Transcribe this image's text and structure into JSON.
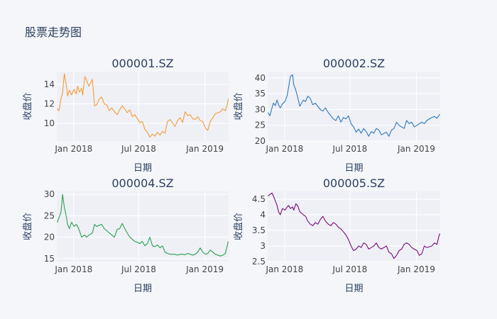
{
  "title": "股票走势图",
  "colors": {
    "background": "#f5f6fa",
    "plot_background": "#eef0f6",
    "grid": "#ffffff",
    "text": "#2a3f5f"
  },
  "chart_data": [
    {
      "type": "line",
      "title": "000001.SZ",
      "xlabel": "日期",
      "ylabel": "收盘价",
      "color": "#f59b38",
      "x_range": [
        "2017-11-15",
        "2019-03-08"
      ],
      "ylim": [
        8.2,
        15.3
      ],
      "x_ticks": [
        {
          "date": "2018-01-01",
          "label": "Jan 2018"
        },
        {
          "date": "2018-07-01",
          "label": "Jul 2018"
        },
        {
          "date": "2019-01-01",
          "label": "Jan 2019"
        }
      ],
      "y_ticks": [
        10,
        12,
        14
      ],
      "x": [
        "2017-11-16",
        "2017-11-21",
        "2017-11-27",
        "2017-12-01",
        "2017-12-06",
        "2017-12-11",
        "2017-12-15",
        "2017-12-20",
        "2017-12-26",
        "2018-01-02",
        "2018-01-08",
        "2018-01-12",
        "2018-01-17",
        "2018-01-23",
        "2018-01-26",
        "2018-02-01",
        "2018-02-06",
        "2018-02-12",
        "2018-02-22",
        "2018-02-28",
        "2018-03-06",
        "2018-03-13",
        "2018-03-20",
        "2018-03-27",
        "2018-04-03",
        "2018-04-10",
        "2018-04-17",
        "2018-04-24",
        "2018-05-02",
        "2018-05-09",
        "2018-05-16",
        "2018-05-23",
        "2018-05-30",
        "2018-06-06",
        "2018-06-13",
        "2018-06-20",
        "2018-06-27",
        "2018-07-04",
        "2018-07-11",
        "2018-07-18",
        "2018-07-25",
        "2018-08-01",
        "2018-08-08",
        "2018-08-15",
        "2018-08-22",
        "2018-08-29",
        "2018-09-05",
        "2018-09-12",
        "2018-09-19",
        "2018-09-26",
        "2018-10-10",
        "2018-10-17",
        "2018-10-24",
        "2018-10-31",
        "2018-11-07",
        "2018-11-14",
        "2018-11-21",
        "2018-11-28",
        "2018-12-05",
        "2018-12-12",
        "2018-12-19",
        "2018-12-26",
        "2019-01-03",
        "2019-01-09",
        "2019-01-16",
        "2019-01-23",
        "2019-01-30",
        "2019-02-13",
        "2019-02-20",
        "2019-02-27",
        "2019-03-04",
        "2019-03-07"
      ],
      "values": [
        11.5,
        11.3,
        12.6,
        13.1,
        15.1,
        14.0,
        12.8,
        13.4,
        12.9,
        13.5,
        13.0,
        13.8,
        13.2,
        13.6,
        12.9,
        14.8,
        14.4,
        13.8,
        14.5,
        11.8,
        11.9,
        12.5,
        12.7,
        12.0,
        11.9,
        11.3,
        11.6,
        11.2,
        10.9,
        11.4,
        11.8,
        11.5,
        11.1,
        11.4,
        10.7,
        10.9,
        10.5,
        10.1,
        10.2,
        9.4,
        9.1,
        8.6,
        8.9,
        8.7,
        9.1,
        8.8,
        9.2,
        9.0,
        10.2,
        10.4,
        9.7,
        10.3,
        10.6,
        10.1,
        11.2,
        10.8,
        10.9,
        10.5,
        10.4,
        10.7,
        10.3,
        10.2,
        9.5,
        9.3,
        10.2,
        10.6,
        11.0,
        11.2,
        11.5,
        11.3,
        11.9,
        12.5
      ]
    },
    {
      "type": "line",
      "title": "000002.SZ",
      "xlabel": "日期",
      "ylabel": "收盘价",
      "color": "#2e78ba",
      "x_range": [
        "2017-11-15",
        "2019-03-08"
      ],
      "ylim": [
        20,
        42
      ],
      "x_ticks": [
        {
          "date": "2018-01-01",
          "label": "Jan 2018"
        },
        {
          "date": "2018-07-01",
          "label": "Jul 2018"
        },
        {
          "date": "2019-01-01",
          "label": "Jan 2019"
        }
      ],
      "y_ticks": [
        20,
        25,
        30,
        35,
        40
      ],
      "x": [
        "2017-11-16",
        "2017-11-21",
        "2017-11-27",
        "2017-12-01",
        "2017-12-06",
        "2017-12-11",
        "2017-12-15",
        "2017-12-20",
        "2017-12-26",
        "2018-01-02",
        "2018-01-08",
        "2018-01-12",
        "2018-01-17",
        "2018-01-23",
        "2018-01-26",
        "2018-02-01",
        "2018-02-06",
        "2018-02-12",
        "2018-02-22",
        "2018-02-28",
        "2018-03-06",
        "2018-03-13",
        "2018-03-20",
        "2018-03-27",
        "2018-04-03",
        "2018-04-10",
        "2018-04-17",
        "2018-04-24",
        "2018-05-02",
        "2018-05-09",
        "2018-05-16",
        "2018-05-23",
        "2018-05-30",
        "2018-06-06",
        "2018-06-13",
        "2018-06-20",
        "2018-06-27",
        "2018-07-04",
        "2018-07-11",
        "2018-07-18",
        "2018-07-25",
        "2018-08-01",
        "2018-08-08",
        "2018-08-15",
        "2018-08-22",
        "2018-08-29",
        "2018-09-05",
        "2018-09-12",
        "2018-09-19",
        "2018-09-26",
        "2018-10-10",
        "2018-10-17",
        "2018-10-24",
        "2018-10-31",
        "2018-11-07",
        "2018-11-14",
        "2018-11-21",
        "2018-11-28",
        "2018-12-05",
        "2018-12-12",
        "2018-12-19",
        "2018-12-26",
        "2019-01-03",
        "2019-01-09",
        "2019-01-16",
        "2019-01-23",
        "2019-01-30",
        "2019-02-13",
        "2019-02-20",
        "2019-02-27",
        "2019-03-04",
        "2019-03-07"
      ],
      "values": [
        29.0,
        28.0,
        30.5,
        32.0,
        31.2,
        33.0,
        31.5,
        30.5,
        31.8,
        32.5,
        34.5,
        37.0,
        40.5,
        41.0,
        38.0,
        36.0,
        34.0,
        31.0,
        33.0,
        32.5,
        34.2,
        33.5,
        31.5,
        32.0,
        31.0,
        30.0,
        29.5,
        30.5,
        29.0,
        28.0,
        27.0,
        26.5,
        28.0,
        26.0,
        27.5,
        27.0,
        28.0,
        25.5,
        24.5,
        22.8,
        23.8,
        22.5,
        24.0,
        23.0,
        21.5,
        23.0,
        22.5,
        24.0,
        23.5,
        22.0,
        22.8,
        21.5,
        23.5,
        24.0,
        26.0,
        25.0,
        24.5,
        24.0,
        26.5,
        25.5,
        26.0,
        24.5,
        25.0,
        25.5,
        26.0,
        25.5,
        26.5,
        27.5,
        27.8,
        27.2,
        28.0,
        28.5
      ]
    },
    {
      "type": "line",
      "title": "000004.SZ",
      "xlabel": "日期",
      "ylabel": "收盘价",
      "color": "#2aa050",
      "x_range": [
        "2017-11-15",
        "2019-03-08"
      ],
      "ylim": [
        14.3,
        30.7
      ],
      "x_ticks": [
        {
          "date": "2018-01-01",
          "label": "Jan 2018"
        },
        {
          "date": "2018-07-01",
          "label": "Jul 2018"
        },
        {
          "date": "2019-01-01",
          "label": "Jan 2019"
        }
      ],
      "y_ticks": [
        15,
        20,
        25,
        30
      ],
      "x": [
        "2017-11-16",
        "2017-11-21",
        "2017-11-27",
        "2017-12-01",
        "2017-12-06",
        "2017-12-11",
        "2017-12-15",
        "2017-12-20",
        "2017-12-26",
        "2018-01-02",
        "2018-01-08",
        "2018-01-12",
        "2018-01-17",
        "2018-01-23",
        "2018-01-26",
        "2018-02-01",
        "2018-02-06",
        "2018-02-12",
        "2018-02-22",
        "2018-02-28",
        "2018-03-06",
        "2018-03-13",
        "2018-03-20",
        "2018-03-27",
        "2018-04-03",
        "2018-04-10",
        "2018-04-17",
        "2018-04-24",
        "2018-05-02",
        "2018-05-09",
        "2018-05-16",
        "2018-05-23",
        "2018-05-30",
        "2018-06-06",
        "2018-06-13",
        "2018-06-20",
        "2018-06-27",
        "2018-07-04",
        "2018-07-11",
        "2018-07-18",
        "2018-07-25",
        "2018-08-01",
        "2018-08-08",
        "2018-08-15",
        "2018-08-22",
        "2018-08-29",
        "2018-09-05",
        "2018-09-12",
        "2018-09-19",
        "2018-09-26",
        "2018-10-10",
        "2018-10-17",
        "2018-10-24",
        "2018-10-31",
        "2018-11-07",
        "2018-11-14",
        "2018-11-21",
        "2018-11-28",
        "2018-12-05",
        "2018-12-12",
        "2018-12-19",
        "2018-12-26",
        "2019-01-03",
        "2019-01-09",
        "2019-01-16",
        "2019-01-23",
        "2019-01-30",
        "2019-02-13",
        "2019-02-20",
        "2019-02-27",
        "2019-03-04",
        "2019-03-07"
      ],
      "values": [
        23.5,
        24.5,
        26.0,
        30.0,
        27.0,
        25.0,
        23.0,
        22.0,
        23.5,
        22.5,
        23.0,
        22.5,
        21.5,
        20.0,
        20.2,
        20.5,
        20.0,
        20.5,
        21.0,
        23.0,
        22.5,
        22.8,
        23.0,
        22.0,
        21.5,
        21.0,
        20.5,
        20.0,
        21.8,
        22.0,
        23.2,
        22.0,
        21.0,
        20.0,
        19.5,
        19.0,
        18.8,
        18.5,
        19.0,
        18.0,
        18.5,
        20.0,
        18.0,
        17.8,
        18.2,
        17.5,
        18.0,
        16.5,
        16.2,
        16.0,
        16.0,
        15.8,
        16.0,
        16.0,
        15.9,
        16.2,
        16.0,
        15.8,
        16.0,
        16.5,
        17.5,
        16.5,
        16.0,
        16.2,
        17.0,
        16.5,
        16.0,
        15.6,
        15.8,
        16.2,
        18.0,
        19.0
      ]
    },
    {
      "type": "line",
      "title": "000005.SZ",
      "xlabel": "日期",
      "ylabel": "收盘价",
      "color": "#7b0a7b",
      "x_range": [
        "2017-11-15",
        "2019-03-08"
      ],
      "ylim": [
        2.5,
        4.75
      ],
      "x_ticks": [
        {
          "date": "2018-01-01",
          "label": "Jan 2018"
        },
        {
          "date": "2018-07-01",
          "label": "Jul 2018"
        },
        {
          "date": "2019-01-01",
          "label": "Jan 2019"
        }
      ],
      "y_ticks": [
        2.5,
        3,
        3.5,
        4,
        4.5
      ],
      "x": [
        "2017-11-16",
        "2017-11-21",
        "2017-11-27",
        "2017-12-01",
        "2017-12-06",
        "2017-12-11",
        "2017-12-15",
        "2017-12-20",
        "2017-12-26",
        "2018-01-02",
        "2018-01-08",
        "2018-01-12",
        "2018-01-17",
        "2018-01-23",
        "2018-01-26",
        "2018-02-01",
        "2018-02-06",
        "2018-02-12",
        "2018-02-22",
        "2018-02-28",
        "2018-03-06",
        "2018-03-13",
        "2018-03-20",
        "2018-03-27",
        "2018-04-03",
        "2018-04-10",
        "2018-04-17",
        "2018-04-24",
        "2018-05-02",
        "2018-05-09",
        "2018-05-16",
        "2018-05-23",
        "2018-05-30",
        "2018-06-06",
        "2018-06-13",
        "2018-06-20",
        "2018-06-27",
        "2018-07-04",
        "2018-07-11",
        "2018-07-18",
        "2018-07-25",
        "2018-08-01",
        "2018-08-08",
        "2018-08-15",
        "2018-08-22",
        "2018-08-29",
        "2018-09-05",
        "2018-09-12",
        "2018-09-19",
        "2018-09-26",
        "2018-10-10",
        "2018-10-17",
        "2018-10-24",
        "2018-10-31",
        "2018-11-07",
        "2018-11-14",
        "2018-11-21",
        "2018-11-28",
        "2018-12-05",
        "2018-12-12",
        "2018-12-19",
        "2018-12-26",
        "2019-01-03",
        "2019-01-09",
        "2019-01-16",
        "2019-01-23",
        "2019-01-30",
        "2019-02-13",
        "2019-02-20",
        "2019-02-27",
        "2019-03-04",
        "2019-03-07"
      ],
      "values": [
        4.6,
        4.65,
        4.7,
        4.6,
        4.45,
        4.3,
        4.1,
        4.0,
        4.2,
        4.15,
        4.25,
        4.3,
        4.2,
        4.25,
        4.15,
        4.35,
        4.3,
        4.1,
        4.0,
        3.95,
        3.8,
        3.7,
        3.65,
        3.75,
        3.7,
        3.85,
        3.95,
        3.8,
        3.7,
        3.65,
        3.75,
        3.7,
        3.6,
        3.55,
        3.45,
        3.35,
        3.2,
        3.0,
        2.85,
        2.9,
        3.0,
        2.95,
        3.1,
        3.05,
        2.9,
        2.95,
        3.0,
        3.1,
        2.95,
        2.9,
        3.0,
        2.8,
        2.75,
        2.6,
        2.7,
        2.85,
        2.9,
        3.05,
        3.1,
        3.05,
        2.95,
        2.9,
        2.85,
        2.7,
        2.75,
        3.0,
        2.95,
        3.0,
        3.1,
        3.05,
        3.3,
        3.4
      ]
    }
  ]
}
